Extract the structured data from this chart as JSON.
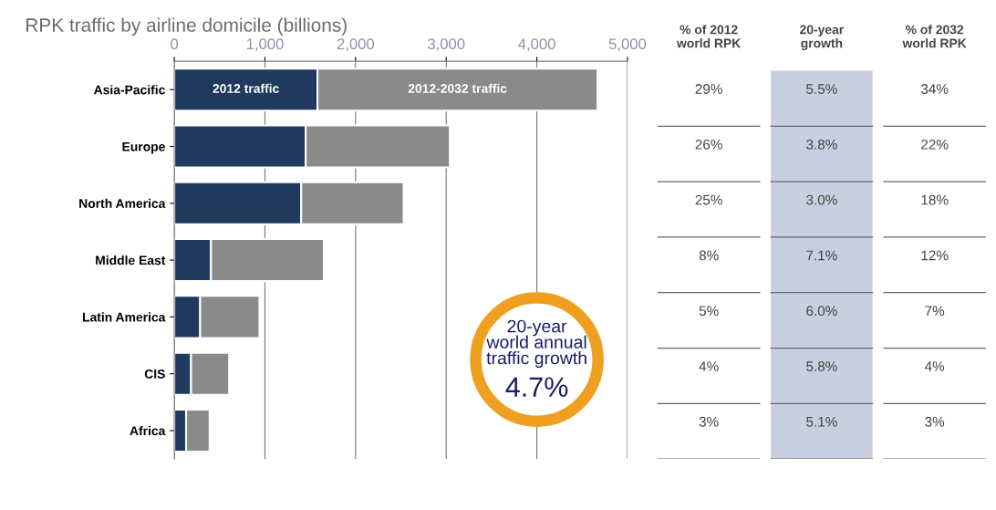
{
  "chart_data": [
    {
      "type": "bar",
      "orientation": "horizontal",
      "stacked": true,
      "title": "RPK traffic by airline domicile (billions)",
      "categories": [
        "Asia-Pacific",
        "Europe",
        "North America",
        "Middle East",
        "Latin America",
        "CIS",
        "Africa"
      ],
      "series": [
        {
          "name": "2012 traffic",
          "color": "#1f3a5c",
          "values": [
            1580,
            1450,
            1400,
            405,
            285,
            185,
            130
          ]
        },
        {
          "name": "2012-2032 traffic",
          "color": "#8a8a8a",
          "values": [
            3090,
            1590,
            1130,
            1245,
            655,
            420,
            260
          ]
        }
      ],
      "xlim": [
        0,
        5000
      ],
      "xticks": [
        {
          "value": 0,
          "label": "0"
        },
        {
          "value": 1000,
          "label": "1,000"
        },
        {
          "value": 2000,
          "label": "2,000"
        },
        {
          "value": 3000,
          "label": "3,000"
        },
        {
          "value": 4000,
          "label": "4,000"
        },
        {
          "value": 5000,
          "label": "5,000"
        }
      ],
      "grid": "x",
      "annotations": [
        "20-year\nworld annual\ntraffic growth",
        "4.7%"
      ]
    },
    {
      "type": "other",
      "categories": [
        "% of 2012\nworld RPK",
        "20-year\ngrowth",
        "% of 2032\nworld RPK"
      ],
      "colors": [
        "#ffffff",
        "#c8cfdf",
        "#ffffff"
      ],
      "cell_labels": [
        [
          "29%",
          "5.5%",
          "34%"
        ],
        [
          "26%",
          "3.8%",
          "22%"
        ],
        [
          "25%",
          "3.0%",
          "18%"
        ],
        [
          "8%",
          "7.1%",
          "12%"
        ],
        [
          "5%",
          "6.0%",
          "7%"
        ],
        [
          "4%",
          "5.8%",
          "4%"
        ],
        [
          "3%",
          "5.1%",
          "3%"
        ]
      ]
    }
  ]
}
